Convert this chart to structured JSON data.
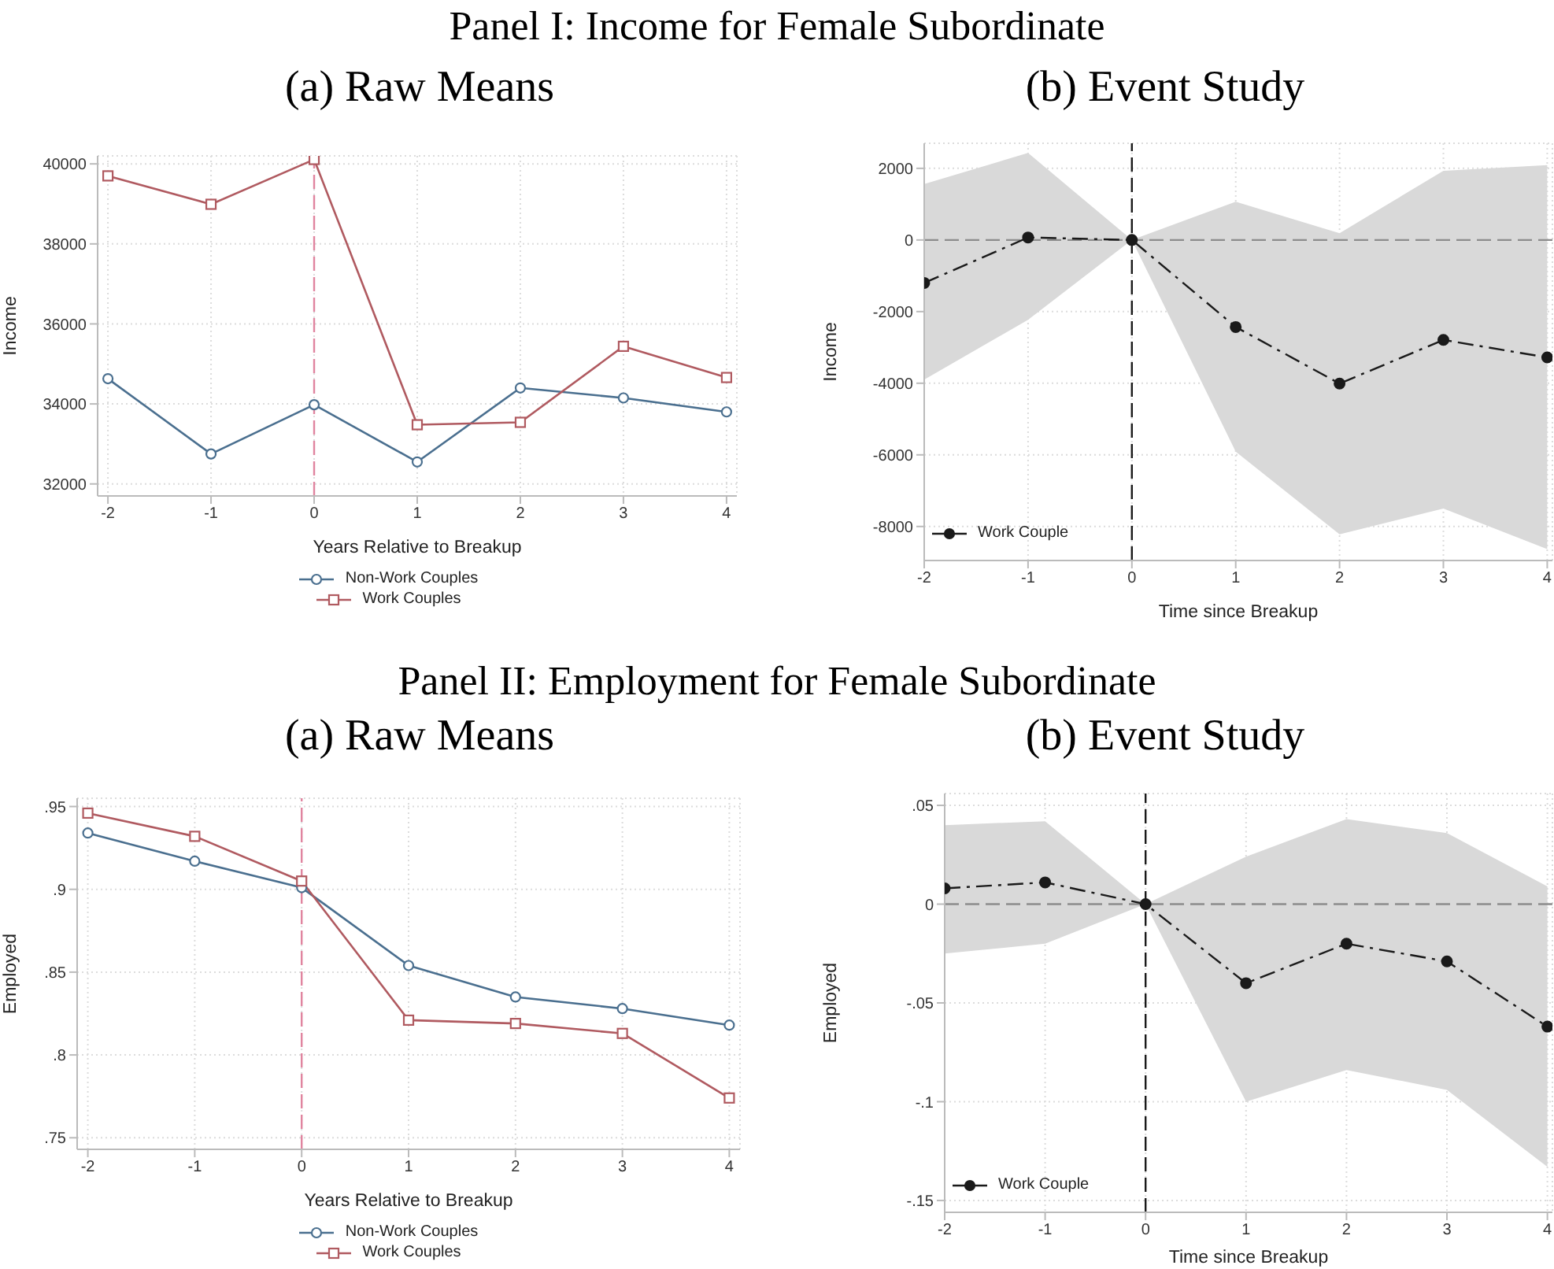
{
  "chart_data": [
    {
      "type": "line",
      "title": "Panel I: Income for Female Subordinate",
      "subtitle": "(a) Raw Means",
      "xlabel": "Years Relative to Breakup",
      "ylabel": "Income",
      "x": [
        -2,
        -1,
        0,
        1,
        2,
        3,
        4
      ],
      "series": [
        {
          "name": "Non-Work Couples",
          "color": "#4a6f8f",
          "marker": "circle",
          "values": [
            34630,
            32750,
            33980,
            32550,
            34400,
            34150,
            33800
          ]
        },
        {
          "name": "Work Couples",
          "color": "#b05a60",
          "marker": "square",
          "values": [
            39700,
            38990,
            40110,
            33480,
            33540,
            35440,
            34660
          ]
        }
      ],
      "xlim": [
        -2.1,
        4.1
      ],
      "xticks": [
        -2,
        -1,
        0,
        1,
        2,
        3,
        4
      ],
      "ylim": [
        31700,
        40200
      ],
      "yticks": [
        32000,
        34000,
        36000,
        38000,
        40000
      ],
      "ref_lines": [
        {
          "axis": "x",
          "value": 0,
          "color": "#e0849f",
          "line_style": "dashed"
        }
      ],
      "grid": true,
      "legend": "bottom",
      "line_style": "solid"
    },
    {
      "type": "line",
      "subtitle": "(b) Event Study",
      "xlabel": "Time since Breakup",
      "ylabel": "Income",
      "x": [
        -2,
        -1,
        0,
        1,
        2,
        3,
        4
      ],
      "series": [
        {
          "name": "Work Couple",
          "color": "#1a1a1a",
          "marker": "circle",
          "values": [
            -1200,
            70,
            0,
            -2430,
            -4010,
            -2790,
            -3280
          ],
          "lower": [
            -3900,
            -2230,
            0,
            -5910,
            -8220,
            -7500,
            -8630
          ],
          "upper": [
            1560,
            2430,
            0,
            1070,
            190,
            1930,
            2090
          ]
        }
      ],
      "xlim": [
        -2,
        4.05
      ],
      "xticks": [
        -2,
        -1,
        0,
        1,
        2,
        3,
        4
      ],
      "ylim": [
        -8950,
        2700
      ],
      "yticks": [
        -8000,
        -6000,
        -4000,
        -2000,
        0,
        2000
      ],
      "ref_lines": [
        {
          "axis": "y",
          "value": 0,
          "color": "#8c8c8c",
          "line_style": "dashed"
        },
        {
          "axis": "x",
          "value": 0,
          "color": "#1a1a1a",
          "line_style": "dashed"
        }
      ],
      "grid": true,
      "legend": "bottom left",
      "line_style": "dashed"
    },
    {
      "type": "line",
      "title": "Panel II: Employment for Female Subordinate",
      "subtitle": "(a) Raw Means",
      "xlabel": "Years Relative to Breakup",
      "ylabel": "Employed",
      "x": [
        -2,
        -1,
        0,
        1,
        2,
        3,
        4
      ],
      "series": [
        {
          "name": "Non-Work Couples",
          "color": "#4a6f8f",
          "marker": "circle",
          "values": [
            0.934,
            0.917,
            0.901,
            0.854,
            0.835,
            0.828,
            0.818
          ]
        },
        {
          "name": "Work Couples",
          "color": "#b05a60",
          "marker": "square",
          "values": [
            0.946,
            0.932,
            0.905,
            0.821,
            0.819,
            0.813,
            0.774
          ]
        }
      ],
      "xlim": [
        -2.1,
        4.1
      ],
      "xticks": [
        -2,
        -1,
        0,
        1,
        2,
        3,
        4
      ],
      "ylim": [
        0.743,
        0.955
      ],
      "yticks": [
        {
          "value": 0.75,
          "label": ".75"
        },
        {
          "value": 0.8,
          "label": ".8"
        },
        {
          "value": 0.85,
          "label": ".85"
        },
        {
          "value": 0.9,
          "label": ".9"
        },
        {
          "value": 0.95,
          "label": ".95"
        }
      ],
      "ref_lines": [
        {
          "axis": "x",
          "value": 0,
          "color": "#e0849f",
          "line_style": "dashed"
        }
      ],
      "grid": true,
      "legend": "bottom",
      "line_style": "solid"
    },
    {
      "type": "line",
      "subtitle": "(b) Event Study",
      "xlabel": "Time since Breakup",
      "ylabel": "Employed",
      "x": [
        -2,
        -1,
        0,
        1,
        2,
        3,
        4
      ],
      "series": [
        {
          "name": "Work Couple",
          "color": "#1a1a1a",
          "marker": "circle",
          "values": [
            0.008,
            0.011,
            0,
            -0.04,
            -0.02,
            -0.029,
            -0.062
          ],
          "lower": [
            -0.025,
            -0.02,
            0,
            -0.1,
            -0.084,
            -0.094,
            -0.133
          ],
          "upper": [
            0.04,
            0.042,
            0,
            0.024,
            0.043,
            0.036,
            0.009
          ]
        }
      ],
      "xlim": [
        -2,
        4.05
      ],
      "xticks": [
        -2,
        -1,
        0,
        1,
        2,
        3,
        4
      ],
      "ylim": [
        -0.156,
        0.056
      ],
      "yticks": [
        {
          "value": -0.15,
          "label": "-.15"
        },
        {
          "value": -0.1,
          "label": "-.1"
        },
        {
          "value": -0.05,
          "label": "-.05"
        },
        0,
        {
          "value": 0.05,
          "label": ".05"
        }
      ],
      "ref_lines": [
        {
          "axis": "y",
          "value": 0,
          "color": "#8c8c8c",
          "line_style": "dashed"
        },
        {
          "axis": "x",
          "value": 0,
          "color": "#1a1a1a",
          "line_style": "dashed"
        }
      ],
      "grid": true,
      "legend": "bottom left",
      "line_style": "dashed"
    }
  ]
}
